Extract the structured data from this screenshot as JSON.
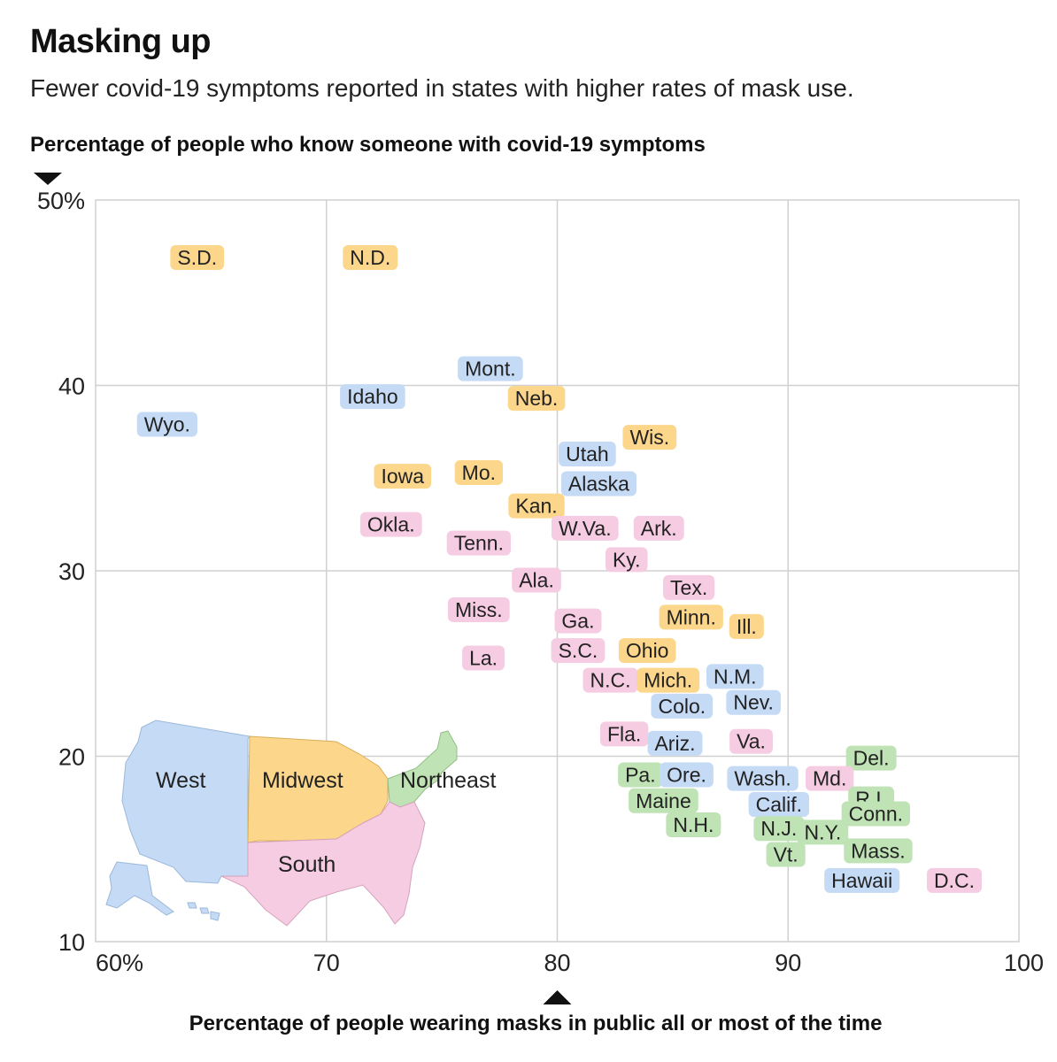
{
  "chart_data": {
    "type": "scatter",
    "title": "Masking up",
    "subtitle": "Fewer covid-19 symptoms reported in states with higher rates of mask use.",
    "ylabel": "Percentage of people who know someone with covid-19 symptoms",
    "xlabel": "Percentage of people wearing masks in public all or most of the time",
    "xlim": [
      60,
      100
    ],
    "ylim": [
      10,
      50
    ],
    "x_ticks": [
      {
        "value": 60,
        "label": "60%"
      },
      {
        "value": 70,
        "label": "70"
      },
      {
        "value": 80,
        "label": "80"
      },
      {
        "value": 90,
        "label": "90"
      },
      {
        "value": 100,
        "label": "100"
      }
    ],
    "y_ticks": [
      {
        "value": 50,
        "label": "50%"
      },
      {
        "value": 40,
        "label": "40"
      },
      {
        "value": 30,
        "label": "30"
      },
      {
        "value": 20,
        "label": "20"
      },
      {
        "value": 10,
        "label": "10"
      }
    ],
    "grid": true,
    "x_marker": 80,
    "regions": [
      {
        "name": "West",
        "label": "West",
        "color": "#c5daf5"
      },
      {
        "name": "Midwest",
        "label": "Midwest",
        "color": "#fcd68a"
      },
      {
        "name": "South",
        "label": "South",
        "color": "#f6cce2"
      },
      {
        "name": "Northeast",
        "label": "Northeast",
        "color": "#bfe3b4"
      }
    ],
    "points": [
      {
        "label": "S.D.",
        "region": "Midwest",
        "x": 64.4,
        "y": 46.9
      },
      {
        "label": "N.D.",
        "region": "Midwest",
        "x": 71.9,
        "y": 46.9
      },
      {
        "label": "Mont.",
        "region": "West",
        "x": 77.1,
        "y": 40.9
      },
      {
        "label": "Idaho",
        "region": "West",
        "x": 72.0,
        "y": 39.4
      },
      {
        "label": "Neb.",
        "region": "Midwest",
        "x": 79.1,
        "y": 39.3
      },
      {
        "label": "Wyo.",
        "region": "West",
        "x": 63.1,
        "y": 37.9
      },
      {
        "label": "Wis.",
        "region": "Midwest",
        "x": 84.0,
        "y": 37.2
      },
      {
        "label": "Utah",
        "region": "West",
        "x": 81.3,
        "y": 36.3
      },
      {
        "label": "Iowa",
        "region": "Midwest",
        "x": 73.3,
        "y": 35.1
      },
      {
        "label": "Mo.",
        "region": "Midwest",
        "x": 76.6,
        "y": 35.3
      },
      {
        "label": "Alaska",
        "region": "West",
        "x": 81.8,
        "y": 34.7
      },
      {
        "label": "Kan.",
        "region": "Midwest",
        "x": 79.1,
        "y": 33.5
      },
      {
        "label": "Okla.",
        "region": "South",
        "x": 72.8,
        "y": 32.5
      },
      {
        "label": "W.Va.",
        "region": "South",
        "x": 81.2,
        "y": 32.3
      },
      {
        "label": "Ark.",
        "region": "South",
        "x": 84.4,
        "y": 32.3
      },
      {
        "label": "Tenn.",
        "region": "South",
        "x": 76.6,
        "y": 31.5
      },
      {
        "label": "Ky.",
        "region": "South",
        "x": 83.0,
        "y": 30.6
      },
      {
        "label": "Ala.",
        "region": "South",
        "x": 79.1,
        "y": 29.5
      },
      {
        "label": "Tex.",
        "region": "South",
        "x": 85.7,
        "y": 29.1
      },
      {
        "label": "Miss.",
        "region": "South",
        "x": 76.6,
        "y": 27.9
      },
      {
        "label": "Minn.",
        "region": "Midwest",
        "x": 85.8,
        "y": 27.5
      },
      {
        "label": "Ga.",
        "region": "South",
        "x": 80.9,
        "y": 27.3
      },
      {
        "label": "Ill.",
        "region": "Midwest",
        "x": 88.2,
        "y": 27.0
      },
      {
        "label": "S.C.",
        "region": "South",
        "x": 80.9,
        "y": 25.7
      },
      {
        "label": "Ohio",
        "region": "Midwest",
        "x": 83.9,
        "y": 25.7
      },
      {
        "label": "La.",
        "region": "South",
        "x": 76.8,
        "y": 25.3
      },
      {
        "label": "N.C.",
        "region": "South",
        "x": 82.3,
        "y": 24.1
      },
      {
        "label": "Mich.",
        "region": "Midwest",
        "x": 84.8,
        "y": 24.1
      },
      {
        "label": "N.M.",
        "region": "West",
        "x": 87.7,
        "y": 24.3
      },
      {
        "label": "Colo.",
        "region": "West",
        "x": 85.4,
        "y": 22.7
      },
      {
        "label": "Nev.",
        "region": "West",
        "x": 88.5,
        "y": 22.9
      },
      {
        "label": "Fla.",
        "region": "South",
        "x": 82.9,
        "y": 21.2
      },
      {
        "label": "Ariz.",
        "region": "West",
        "x": 85.1,
        "y": 20.7
      },
      {
        "label": "Va.",
        "region": "South",
        "x": 88.4,
        "y": 20.8
      },
      {
        "label": "Del.",
        "region": "Northeast",
        "x": 93.6,
        "y": 19.9
      },
      {
        "label": "Pa.",
        "region": "Northeast",
        "x": 83.6,
        "y": 19.0
      },
      {
        "label": "Ore.",
        "region": "West",
        "x": 85.6,
        "y": 19.0
      },
      {
        "label": "Wash.",
        "region": "West",
        "x": 88.9,
        "y": 18.8
      },
      {
        "label": "Md.",
        "region": "South",
        "x": 91.8,
        "y": 18.8
      },
      {
        "label": "R.I.",
        "region": "Northeast",
        "x": 93.6,
        "y": 17.7
      },
      {
        "label": "Maine",
        "region": "Northeast",
        "x": 84.6,
        "y": 17.6
      },
      {
        "label": "Calif.",
        "region": "West",
        "x": 89.6,
        "y": 17.4
      },
      {
        "label": "Conn.",
        "region": "Northeast",
        "x": 93.8,
        "y": 16.9
      },
      {
        "label": "N.H.",
        "region": "Northeast",
        "x": 85.9,
        "y": 16.3
      },
      {
        "label": "N.J.",
        "region": "Northeast",
        "x": 89.6,
        "y": 16.1
      },
      {
        "label": "N.Y.",
        "region": "Northeast",
        "x": 91.5,
        "y": 15.9
      },
      {
        "label": "Mass.",
        "region": "Northeast",
        "x": 93.9,
        "y": 14.9
      },
      {
        "label": "Vt.",
        "region": "Northeast",
        "x": 89.9,
        "y": 14.7
      },
      {
        "label": "Hawaii",
        "region": "West",
        "x": 93.2,
        "y": 13.3
      },
      {
        "label": "D.C.",
        "region": "South",
        "x": 97.2,
        "y": 13.3
      }
    ]
  }
}
